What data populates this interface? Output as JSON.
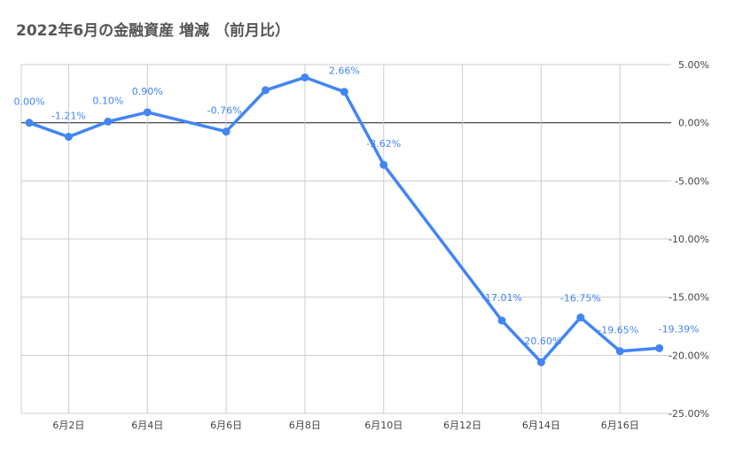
{
  "chart_data": {
    "type": "line",
    "title": "2022年6月の金融資産 増減 （前月比）",
    "x": [
      1,
      2,
      3,
      4,
      6,
      7,
      8,
      9,
      10,
      13,
      14,
      15,
      16,
      17
    ],
    "values": [
      0.0,
      -1.21,
      0.1,
      0.9,
      -0.76,
      2.8,
      3.9,
      2.66,
      -3.62,
      -17.01,
      -20.6,
      -16.75,
      -19.65,
      -19.39
    ],
    "data_labels": [
      "0.00%",
      "-1.21%",
      "0.10%",
      "0.90%",
      "-0.76%",
      "",
      "",
      "2.66%",
      "-3.62%",
      "-17.01%",
      "-20.60%",
      "-16.75%",
      "-19.65%",
      "-19.39%"
    ],
    "xlim": [
      1,
      17.3
    ],
    "ylim": [
      -25,
      5
    ],
    "x_ticks": [
      2,
      4,
      6,
      8,
      10,
      12,
      14,
      16
    ],
    "x_tick_labels": [
      "6月2日",
      "6月4日",
      "6月6日",
      "6月8日",
      "6月10日",
      "6月12日",
      "6月14日",
      "6月16日"
    ],
    "y_ticks": [
      5,
      0,
      -5,
      -10,
      -15,
      -20,
      -25
    ],
    "y_tick_labels": [
      "5.00%",
      "0.00%",
      "-5.00%",
      "-10.00%",
      "-15.00%",
      "-20.00%",
      "-25.00%"
    ],
    "y_axis_side": "right",
    "grid": true,
    "line_color": "#4285f4",
    "grid_color": "#cccccc",
    "zero_line_color": "#333333"
  }
}
